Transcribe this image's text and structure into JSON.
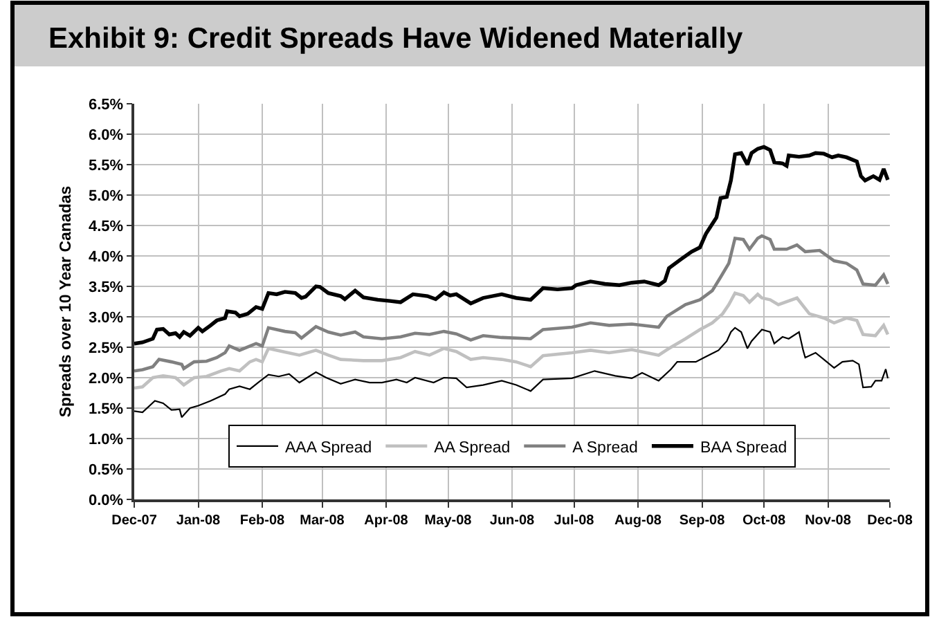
{
  "chart_data": {
    "type": "line",
    "title": "Exhibit 9: Credit Spreads Have Widened Materially",
    "ylabel": "Spreads over 10 Year Canadas",
    "series": [
      {
        "name": "AAA Spread",
        "color": "#000000",
        "x": [
          "2007-12-01",
          "2007-12-05",
          "2007-12-11",
          "2007-12-15",
          "2007-12-19",
          "2007-12-23",
          "2007-12-24",
          "2007-12-28",
          "2008-01-01",
          "2008-01-07",
          "2008-01-14",
          "2008-01-16",
          "2008-01-21",
          "2008-01-26",
          "2008-01-30",
          "2008-02-04",
          "2008-02-09",
          "2008-02-14",
          "2008-02-19",
          "2008-02-27",
          "2008-03-03",
          "2008-03-10",
          "2008-03-17",
          "2008-03-24",
          "2008-03-30",
          "2008-04-06",
          "2008-04-11",
          "2008-04-15",
          "2008-04-24",
          "2008-04-29",
          "2008-05-05",
          "2008-05-10",
          "2008-05-18",
          "2008-05-27",
          "2008-06-03",
          "2008-06-10",
          "2008-06-16",
          "2008-06-30",
          "2008-07-11",
          "2008-07-21",
          "2008-07-29",
          "2008-08-03",
          "2008-08-11",
          "2008-08-17",
          "2008-08-20",
          "2008-08-29",
          "2008-09-02",
          "2008-09-09",
          "2008-09-13",
          "2008-09-15",
          "2008-09-17",
          "2008-09-20",
          "2008-09-23",
          "2008-09-25",
          "2008-09-30",
          "2008-10-04",
          "2008-10-06",
          "2008-10-10",
          "2008-10-13",
          "2008-10-18",
          "2008-10-20",
          "2008-10-21",
          "2008-10-26",
          "2008-10-30",
          "2008-11-04",
          "2008-11-08",
          "2008-11-13",
          "2008-11-16",
          "2008-11-18",
          "2008-11-22",
          "2008-11-24",
          "2008-11-27",
          "2008-11-29",
          "2008-11-30"
        ],
        "values": [
          1.45,
          1.43,
          1.62,
          1.58,
          1.47,
          1.48,
          1.35,
          1.5,
          1.54,
          1.62,
          1.73,
          1.81,
          1.86,
          1.81,
          1.92,
          2.05,
          2.02,
          2.06,
          1.92,
          2.09,
          2.0,
          1.9,
          1.97,
          1.92,
          1.92,
          1.97,
          1.92,
          2.0,
          1.92,
          2.0,
          1.99,
          1.84,
          1.88,
          1.95,
          1.88,
          1.78,
          1.97,
          1.99,
          2.11,
          2.03,
          1.99,
          2.08,
          1.95,
          2.14,
          2.26,
          2.26,
          2.33,
          2.45,
          2.6,
          2.75,
          2.82,
          2.75,
          2.48,
          2.6,
          2.79,
          2.75,
          2.56,
          2.67,
          2.64,
          2.75,
          2.45,
          2.33,
          2.41,
          2.3,
          2.16,
          2.26,
          2.28,
          2.22,
          1.84,
          1.85,
          1.95,
          1.95,
          2.14,
          1.99
        ]
      },
      {
        "name": "AA Spread",
        "color": "#c0c0c0",
        "x": [
          "2007-12-01",
          "2007-12-05",
          "2007-12-10",
          "2007-12-15",
          "2007-12-21",
          "2007-12-25",
          "2007-12-30",
          "2008-01-05",
          "2008-01-12",
          "2008-01-16",
          "2008-01-21",
          "2008-01-26",
          "2008-01-29",
          "2008-02-01",
          "2008-02-04",
          "2008-02-12",
          "2008-02-19",
          "2008-02-27",
          "2008-03-04",
          "2008-03-10",
          "2008-03-21",
          "2008-03-30",
          "2008-04-08",
          "2008-04-15",
          "2008-04-22",
          "2008-04-29",
          "2008-05-05",
          "2008-05-12",
          "2008-05-18",
          "2008-05-27",
          "2008-06-03",
          "2008-06-10",
          "2008-06-16",
          "2008-06-30",
          "2008-07-09",
          "2008-07-18",
          "2008-07-29",
          "2008-08-11",
          "2008-08-16",
          "2008-08-24",
          "2008-08-31",
          "2008-09-06",
          "2008-09-11",
          "2008-09-14",
          "2008-09-17",
          "2008-09-21",
          "2008-09-24",
          "2008-09-28",
          "2008-09-30",
          "2008-10-04",
          "2008-10-08",
          "2008-10-17",
          "2008-10-23",
          "2008-10-30",
          "2008-11-04",
          "2008-11-10",
          "2008-11-15",
          "2008-11-18",
          "2008-11-24",
          "2008-11-28",
          "2008-11-30"
        ],
        "values": [
          1.83,
          1.85,
          2.0,
          2.03,
          2.0,
          1.88,
          2.0,
          2.02,
          2.11,
          2.15,
          2.11,
          2.26,
          2.3,
          2.26,
          2.48,
          2.42,
          2.37,
          2.45,
          2.37,
          2.3,
          2.28,
          2.28,
          2.33,
          2.43,
          2.37,
          2.48,
          2.43,
          2.3,
          2.33,
          2.3,
          2.26,
          2.18,
          2.36,
          2.41,
          2.45,
          2.41,
          2.46,
          2.37,
          2.48,
          2.64,
          2.79,
          2.9,
          3.05,
          3.2,
          3.39,
          3.35,
          3.24,
          3.37,
          3.31,
          3.28,
          3.2,
          3.31,
          3.05,
          2.98,
          2.9,
          2.98,
          2.94,
          2.71,
          2.69,
          2.86,
          2.71
        ]
      },
      {
        "name": "A Spread",
        "color": "#808080",
        "x": [
          "2007-12-01",
          "2007-12-05",
          "2007-12-10",
          "2007-12-13",
          "2007-12-19",
          "2007-12-24",
          "2007-12-25",
          "2007-12-30",
          "2008-01-05",
          "2008-01-10",
          "2008-01-14",
          "2008-01-16",
          "2008-01-21",
          "2008-01-29",
          "2008-02-01",
          "2008-02-04",
          "2008-02-12",
          "2008-02-17",
          "2008-02-20",
          "2008-02-27",
          "2008-03-04",
          "2008-03-10",
          "2008-03-17",
          "2008-03-21",
          "2008-03-30",
          "2008-04-08",
          "2008-04-15",
          "2008-04-22",
          "2008-04-29",
          "2008-05-05",
          "2008-05-12",
          "2008-05-18",
          "2008-05-27",
          "2008-06-10",
          "2008-06-16",
          "2008-06-30",
          "2008-07-09",
          "2008-07-18",
          "2008-07-29",
          "2008-08-11",
          "2008-08-15",
          "2008-08-24",
          "2008-08-31",
          "2008-09-06",
          "2008-09-10",
          "2008-09-14",
          "2008-09-17",
          "2008-09-21",
          "2008-09-24",
          "2008-09-28",
          "2008-09-30",
          "2008-10-04",
          "2008-10-06",
          "2008-10-12",
          "2008-10-17",
          "2008-10-21",
          "2008-10-28",
          "2008-11-04",
          "2008-11-10",
          "2008-11-15",
          "2008-11-18",
          "2008-11-24",
          "2008-11-28",
          "2008-11-30"
        ],
        "values": [
          2.11,
          2.13,
          2.18,
          2.3,
          2.26,
          2.22,
          2.15,
          2.26,
          2.27,
          2.33,
          2.41,
          2.52,
          2.45,
          2.56,
          2.52,
          2.82,
          2.76,
          2.74,
          2.65,
          2.84,
          2.75,
          2.7,
          2.75,
          2.67,
          2.64,
          2.67,
          2.73,
          2.71,
          2.76,
          2.72,
          2.62,
          2.69,
          2.66,
          2.64,
          2.79,
          2.83,
          2.9,
          2.86,
          2.88,
          2.83,
          3.01,
          3.2,
          3.28,
          3.43,
          3.65,
          3.88,
          4.29,
          4.27,
          4.11,
          4.29,
          4.33,
          4.27,
          4.11,
          4.11,
          4.18,
          4.07,
          4.09,
          3.92,
          3.88,
          3.77,
          3.54,
          3.52,
          3.69,
          3.54
        ]
      },
      {
        "name": "BAA Spread",
        "color": "#000000",
        "x": [
          "2007-12-01",
          "2007-12-05",
          "2007-12-10",
          "2007-12-12",
          "2007-12-15",
          "2007-12-18",
          "2007-12-21",
          "2007-12-23",
          "2007-12-25",
          "2007-12-28",
          "2008-01-01",
          "2008-01-03",
          "2008-01-07",
          "2008-01-10",
          "2008-01-14",
          "2008-01-15",
          "2008-01-19",
          "2008-01-21",
          "2008-01-25",
          "2008-01-29",
          "2008-02-01",
          "2008-02-04",
          "2008-02-08",
          "2008-02-12",
          "2008-02-17",
          "2008-02-20",
          "2008-02-22",
          "2008-02-27",
          "2008-02-29",
          "2008-03-04",
          "2008-03-10",
          "2008-03-12",
          "2008-03-17",
          "2008-03-21",
          "2008-03-28",
          "2008-04-03",
          "2008-04-08",
          "2008-04-14",
          "2008-04-21",
          "2008-04-25",
          "2008-04-29",
          "2008-05-02",
          "2008-05-05",
          "2008-05-12",
          "2008-05-18",
          "2008-05-27",
          "2008-06-03",
          "2008-06-10",
          "2008-06-16",
          "2008-06-23",
          "2008-06-30",
          "2008-07-02",
          "2008-07-09",
          "2008-07-16",
          "2008-07-23",
          "2008-07-29",
          "2008-08-04",
          "2008-08-11",
          "2008-08-14",
          "2008-08-16",
          "2008-08-22",
          "2008-08-27",
          "2008-08-31",
          "2008-09-03",
          "2008-09-08",
          "2008-09-10",
          "2008-09-13",
          "2008-09-15",
          "2008-09-17",
          "2008-09-20",
          "2008-09-23",
          "2008-09-25",
          "2008-09-28",
          "2008-10-01",
          "2008-10-04",
          "2008-10-06",
          "2008-10-10",
          "2008-10-12",
          "2008-10-13",
          "2008-10-18",
          "2008-10-23",
          "2008-10-26",
          "2008-10-30",
          "2008-11-03",
          "2008-11-06",
          "2008-11-10",
          "2008-11-15",
          "2008-11-17",
          "2008-11-19",
          "2008-11-23",
          "2008-11-26",
          "2008-11-28",
          "2008-11-30"
        ],
        "values": [
          2.56,
          2.58,
          2.64,
          2.79,
          2.8,
          2.71,
          2.73,
          2.67,
          2.75,
          2.69,
          2.82,
          2.76,
          2.86,
          2.94,
          2.98,
          3.09,
          3.07,
          3.01,
          3.05,
          3.16,
          3.13,
          3.39,
          3.37,
          3.41,
          3.39,
          3.31,
          3.33,
          3.5,
          3.49,
          3.39,
          3.34,
          3.29,
          3.43,
          3.32,
          3.28,
          3.26,
          3.24,
          3.37,
          3.34,
          3.29,
          3.4,
          3.35,
          3.37,
          3.22,
          3.31,
          3.37,
          3.31,
          3.28,
          3.47,
          3.45,
          3.47,
          3.52,
          3.58,
          3.54,
          3.52,
          3.56,
          3.58,
          3.52,
          3.59,
          3.8,
          3.95,
          4.07,
          4.14,
          4.37,
          4.63,
          4.95,
          4.97,
          5.24,
          5.67,
          5.69,
          5.5,
          5.69,
          5.76,
          5.79,
          5.74,
          5.54,
          5.52,
          5.48,
          5.65,
          5.63,
          5.65,
          5.69,
          5.68,
          5.62,
          5.65,
          5.62,
          5.55,
          5.31,
          5.24,
          5.31,
          5.25,
          5.43,
          5.25
        ]
      }
    ],
    "xlim": [
      "2007-12-01",
      "2008-12-01"
    ],
    "xticks": [
      {
        "value": "2007-12-01",
        "label": "Dec-07"
      },
      {
        "value": "2008-01-01",
        "label": "Jan-08"
      },
      {
        "value": "2008-02-01",
        "label": "Feb-08"
      },
      {
        "value": "2008-03-01",
        "label": "Mar-08"
      },
      {
        "value": "2008-04-01",
        "label": "Apr-08"
      },
      {
        "value": "2008-05-01",
        "label": "May-08"
      },
      {
        "value": "2008-06-01",
        "label": "Jun-08"
      },
      {
        "value": "2008-07-01",
        "label": "Jul-08"
      },
      {
        "value": "2008-08-01",
        "label": "Aug-08"
      },
      {
        "value": "2008-09-01",
        "label": "Sep-08"
      },
      {
        "value": "2008-10-01",
        "label": "Oct-08"
      },
      {
        "value": "2008-11-01",
        "label": "Nov-08"
      },
      {
        "value": "2008-12-01",
        "label": "Dec-08"
      }
    ],
    "ylim": [
      0,
      6.5
    ],
    "yticks": [
      {
        "value": 0,
        "label": "0.0%"
      },
      {
        "value": 0.5,
        "label": "0.5%"
      },
      {
        "value": 1,
        "label": "1.0%"
      },
      {
        "value": 1.5,
        "label": "1.5%"
      },
      {
        "value": 2,
        "label": "2.0%"
      },
      {
        "value": 2.5,
        "label": "2.5%"
      },
      {
        "value": 3,
        "label": "3.0%"
      },
      {
        "value": 3.5,
        "label": "3.5%"
      },
      {
        "value": 4,
        "label": "4.0%"
      },
      {
        "value": 4.5,
        "label": "4.5%"
      },
      {
        "value": 5,
        "label": "5.0%"
      },
      {
        "value": 5.5,
        "label": "5.5%"
      },
      {
        "value": 6,
        "label": "6.0%"
      },
      {
        "value": 6.5,
        "label": "6.5%"
      }
    ],
    "grid": true,
    "legend": "bottom"
  }
}
